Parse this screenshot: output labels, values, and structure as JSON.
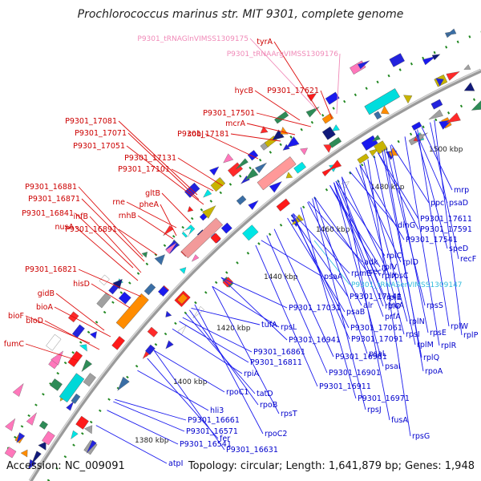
{
  "title": "Prochlorococcus marinus str. MIT 9301, complete genome",
  "accession": "Accession: NC_009091",
  "topology": "Topology: circular; Length: 1,641,879 bp; Genes: 1,948",
  "colors": {
    "red_label": "#cc0000",
    "blue_label": "#0000cc",
    "pink_label": "#f08ab8",
    "cyan_label": "#33bbdd",
    "leader_red": "#dd1111",
    "leader_blue": "#1a1aee",
    "backbone": "#9a9a9a",
    "tick": "#228822"
  },
  "kbp_labels": [
    "1380 kbp",
    "1400 kbp",
    "1420 kbp",
    "1440 kbp",
    "1460 kbp",
    "1480 kbp",
    "1500 kbp"
  ],
  "red_labels": [
    "tyrA",
    "hycB",
    "P9301_17621",
    "P9301_17501",
    "mcrA",
    "P9301_17181",
    "cobJ",
    "P9301_17081",
    "P9301_17071",
    "P9301_17051",
    "P9301_17131",
    "P9301_17101",
    "gltB",
    "rne",
    "pheA",
    "rnhB",
    "P9301_16881",
    "P9301_16871",
    "P9301_16841",
    "infB",
    "nusA",
    "P9301_16891",
    "P9301_16821",
    "hisD",
    "gidB",
    "bioA",
    "bioF",
    "bioD",
    "fumC"
  ],
  "pink_labels": [
    "P9301_tRNAGlnVIMSS1309175",
    "P9301_tRNAArgVIMSS1309176"
  ],
  "cyan_labels": [
    "P9301_tRNASerVIMSS1309147"
  ],
  "blue_labels": [
    "mrp",
    "ppc",
    "psaD",
    "P9301_17611",
    "dinG",
    "P9301_17591",
    "P9301_17541",
    "speD",
    "recF",
    "rplC",
    "rplV",
    "rplX",
    "rplD",
    "adk",
    "secY",
    "rpmE",
    "rpsC",
    "psaA",
    "P9301_17141",
    "rplE",
    "rplO",
    "alr",
    "truA",
    "rpsS",
    "P9301_17031",
    "psaB",
    "prfA",
    "rplN",
    "rpsI",
    "rplW",
    "tufA",
    "rpsL",
    "P9301_17061",
    "rpsE",
    "rplR",
    "P9301_16941",
    "P9301_17091",
    "rplM",
    "rplP",
    "P9301_16861",
    "psaL",
    "rplQ",
    "rpoA",
    "P9301_16811",
    "P9301_16961",
    "psaI",
    "rpiA",
    "P9301_16901",
    "P9301_16911",
    "rpoC1",
    "tatD",
    "P9301_16971",
    "rpoB",
    "rpsT",
    "rpsJ",
    "hli3",
    "fusA",
    "P9301_16661",
    "P9301_16571",
    "fer",
    "rpoC2",
    "rpsG",
    "P9301_16541",
    "P9301_16631",
    "atpI"
  ]
}
